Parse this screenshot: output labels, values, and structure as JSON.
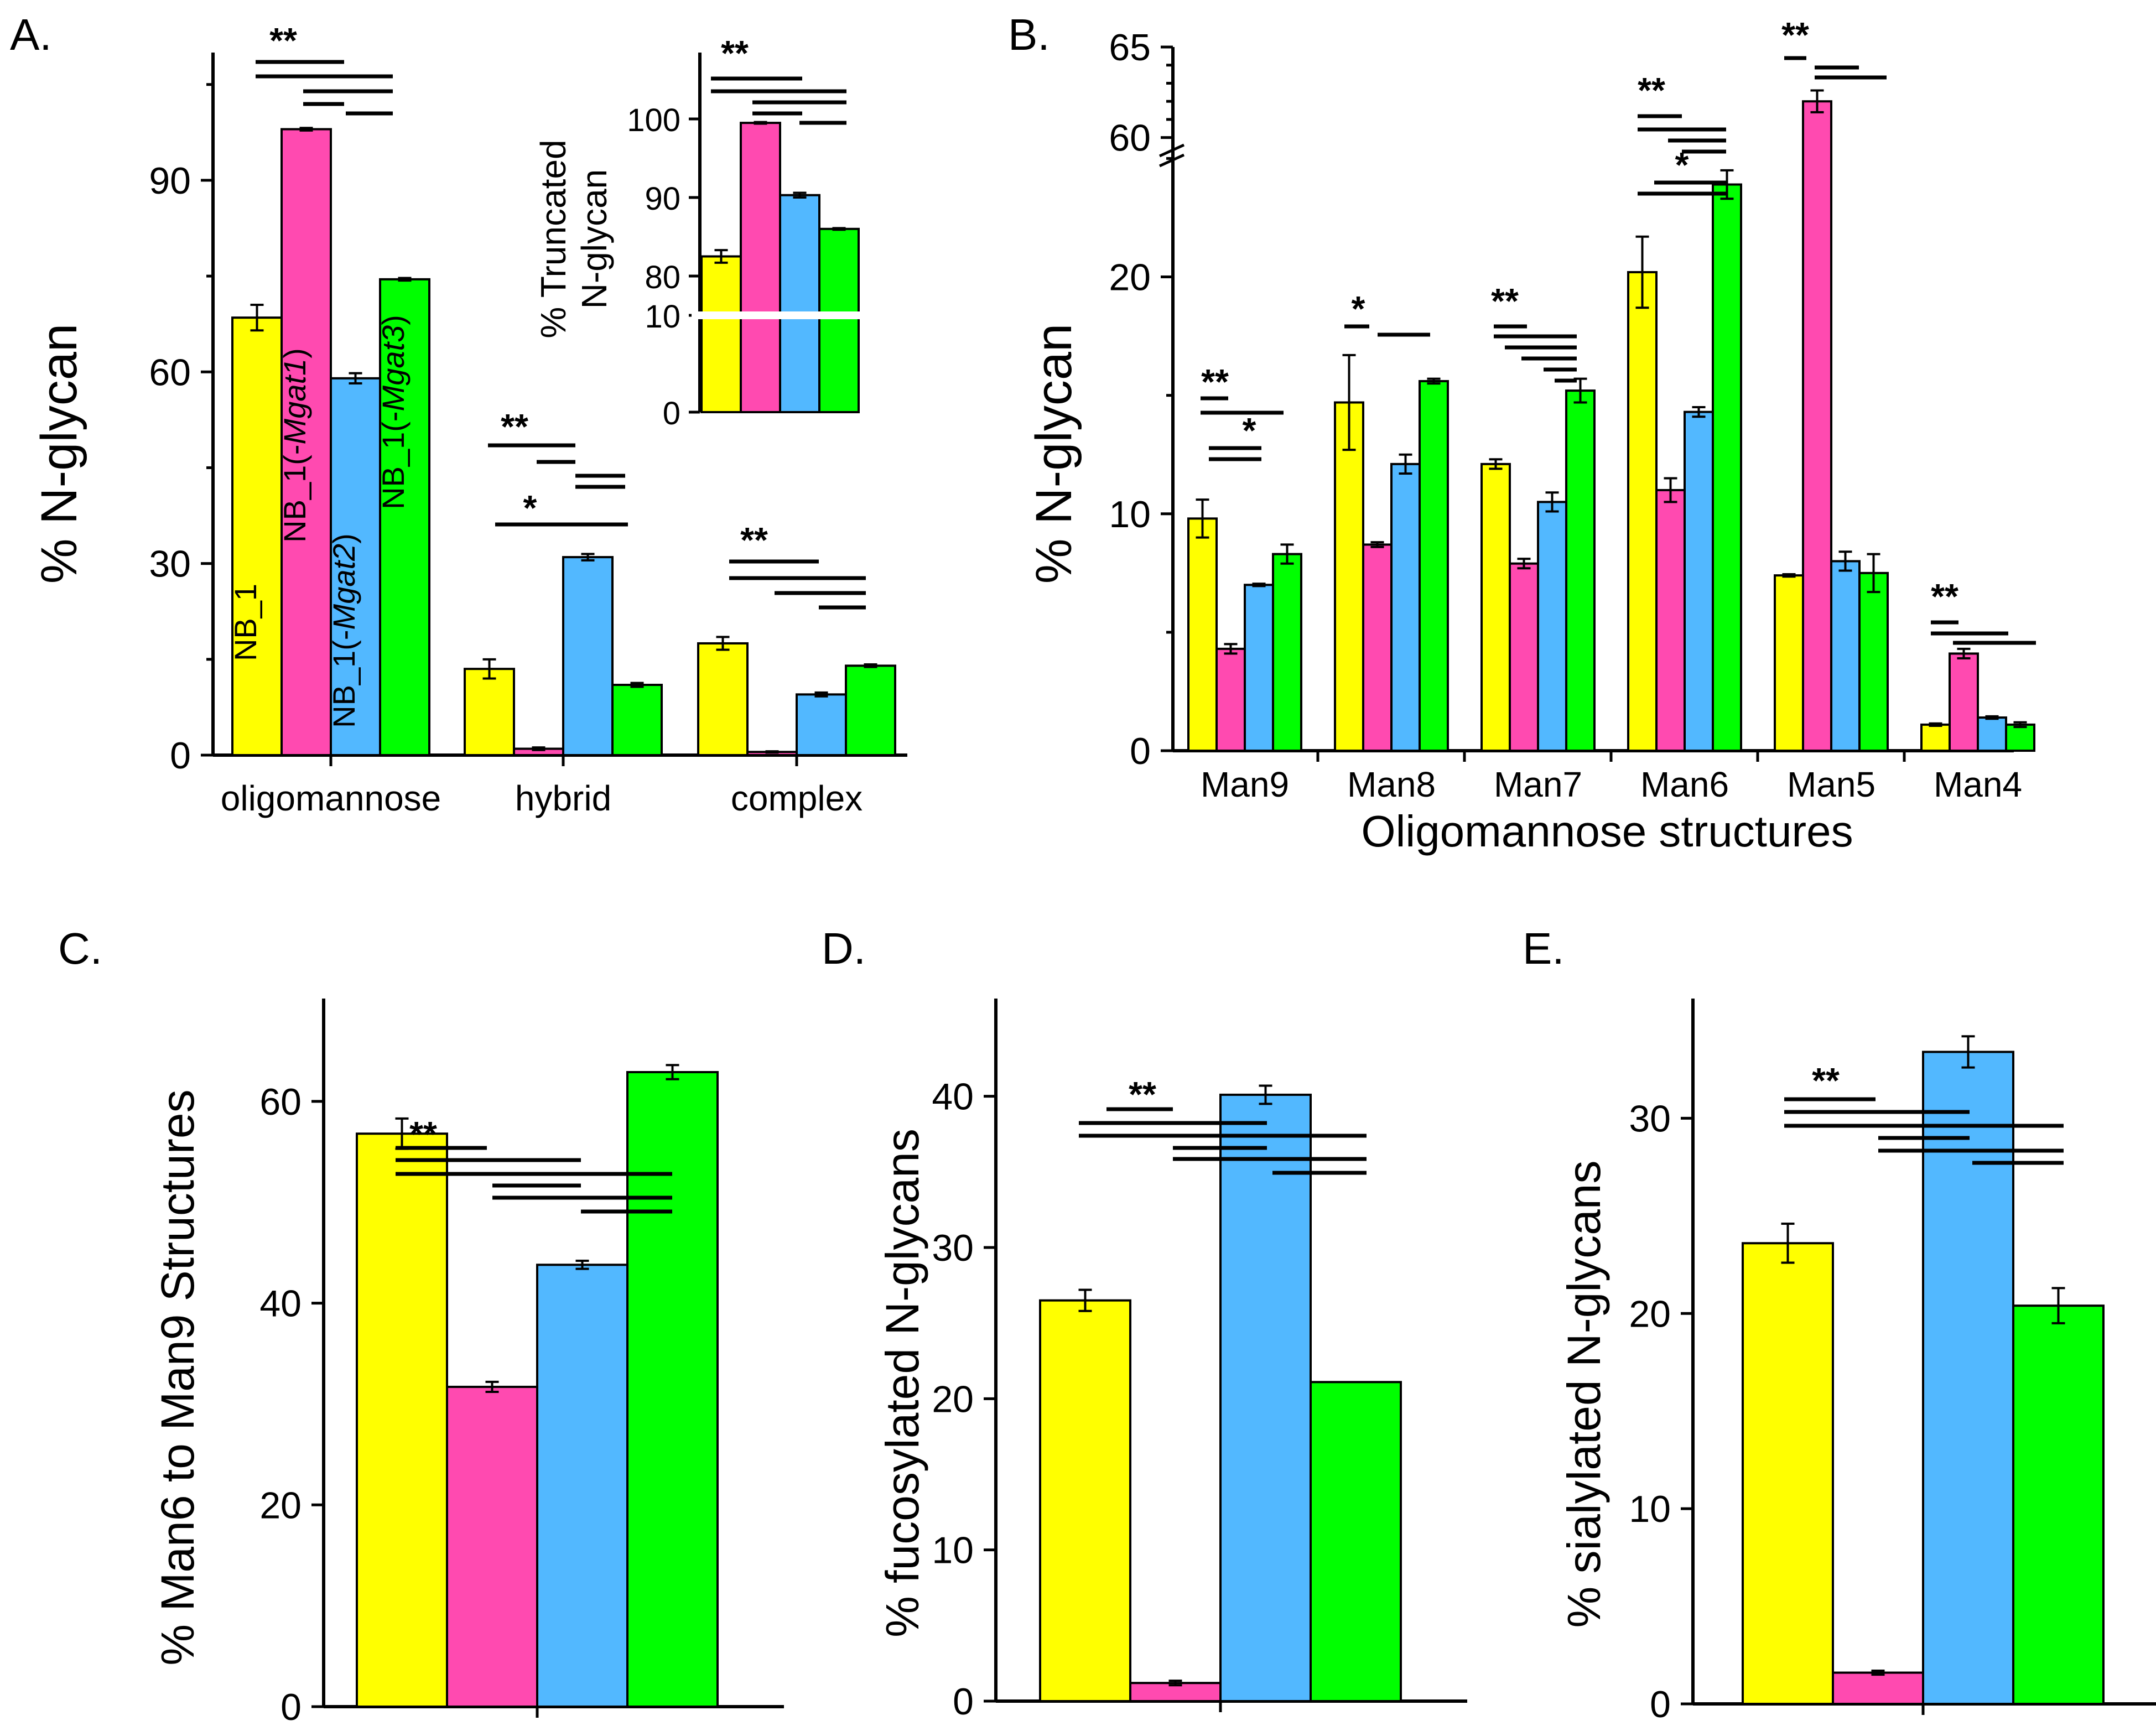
{
  "colors": {
    "NB_1": "#ffff00",
    "NB_1(-Mgat1)": "#ff4ab0",
    "NB_1(-Mgat2)": "#52b8ff",
    "NB_1(-Mgat3)": "#00ff00"
  },
  "series_names": [
    "NB_1",
    "NB_1(-Mgat1)",
    "NB_1(-Mgat2)",
    "NB_1(-Mgat3)"
  ],
  "chart_data": [
    {
      "panel": "A.",
      "type": "bar",
      "ylabel": "% N-glycan",
      "ylim": [
        0,
        110
      ],
      "yticks": [
        0,
        30,
        60,
        90
      ],
      "categories": [
        "oligomannose",
        "hybrid",
        "complex"
      ],
      "series": [
        {
          "name": "NB_1",
          "values": [
            68.5,
            13.5,
            17.5
          ],
          "errors": [
            2.0,
            1.5,
            1.0
          ]
        },
        {
          "name": "NB_1(-Mgat1)",
          "values": [
            98.0,
            1.0,
            0.5
          ],
          "errors": [
            0.2,
            0.2,
            0.1
          ]
        },
        {
          "name": "NB_1(-Mgat2)",
          "values": [
            59.0,
            31.0,
            9.5
          ],
          "errors": [
            0.8,
            0.5,
            0.3
          ]
        },
        {
          "name": "NB_1(-Mgat3)",
          "values": [
            74.5,
            11.0,
            14.0
          ],
          "errors": [
            0.2,
            0.3,
            0.2
          ]
        }
      ],
      "bar_labels": {
        "NB_1": "NB_1",
        "mgat1_prefix": "NB_1(-",
        "mgat1_gene": "Mgat1",
        "mgat2_prefix": "NB_1(-",
        "mgat2_gene": "Mgat2",
        "mgat3_prefix": "NB_1(-",
        "mgat3_gene": "Mgat3",
        "close": ")"
      },
      "significance": [
        "**",
        "**",
        "*",
        "**"
      ]
    },
    {
      "panel": "A. inset",
      "type": "bar",
      "ylabel_line1": "% Truncated",
      "ylabel_line2": "N-glycan",
      "yticks": [
        "0",
        "10",
        "80",
        "90",
        "100"
      ],
      "axis_break": [
        10,
        75
      ],
      "series": [
        {
          "name": "NB_1",
          "values": [
            82.5
          ],
          "errors": [
            0.8
          ]
        },
        {
          "name": "NB_1(-Mgat1)",
          "values": [
            99.5
          ],
          "errors": [
            0.1
          ]
        },
        {
          "name": "NB_1(-Mgat2)",
          "values": [
            90.3
          ],
          "errors": [
            0.3
          ]
        },
        {
          "name": "NB_1(-Mgat3)",
          "values": [
            86.0
          ],
          "errors": [
            0.1
          ]
        }
      ],
      "significance": [
        "**"
      ]
    },
    {
      "panel": "B.",
      "type": "bar",
      "ylabel": "% N-glycan",
      "xlabel": "Oligomannose structures",
      "yticks": [
        0,
        10,
        20,
        60,
        65
      ],
      "axis_break": [
        25.5,
        59.5
      ],
      "categories": [
        "Man9",
        "Man8",
        "Man7",
        "Man6",
        "Man5",
        "Man4"
      ],
      "series": [
        {
          "name": "NB_1",
          "values": [
            9.8,
            14.7,
            12.1,
            20.2,
            7.4,
            1.1
          ],
          "errors": [
            0.8,
            2.0,
            0.2,
            1.5,
            0.05,
            0.05
          ]
        },
        {
          "name": "NB_1(-Mgat1)",
          "values": [
            4.3,
            8.7,
            7.9,
            11.0,
            62.0,
            4.1
          ],
          "errors": [
            0.2,
            0.1,
            0.2,
            0.5,
            0.6,
            0.2
          ]
        },
        {
          "name": "NB_1(-Mgat2)",
          "values": [
            7.0,
            12.1,
            10.5,
            14.3,
            8.0,
            1.4
          ],
          "errors": [
            0.05,
            0.4,
            0.4,
            0.2,
            0.4,
            0.05
          ]
        },
        {
          "name": "NB_1(-Mgat3)",
          "values": [
            8.3,
            15.6,
            15.2,
            23.9,
            7.5,
            1.1
          ],
          "errors": [
            0.4,
            0.1,
            0.5,
            0.6,
            0.8,
            0.1
          ]
        }
      ],
      "significance": [
        "**",
        "*",
        "*",
        "**",
        "**",
        "*",
        "**",
        "**"
      ]
    },
    {
      "panel": "C.",
      "type": "bar",
      "ylabel": "% Man6 to Man9 Structures",
      "ylim": [
        0,
        68
      ],
      "yticks": [
        0,
        20,
        40,
        60
      ],
      "series": [
        {
          "name": "NB_1",
          "values": [
            56.8
          ],
          "errors": [
            1.5
          ]
        },
        {
          "name": "NB_1(-Mgat1)",
          "values": [
            31.7
          ],
          "errors": [
            0.5
          ]
        },
        {
          "name": "NB_1(-Mgat2)",
          "values": [
            43.8
          ],
          "errors": [
            0.4
          ]
        },
        {
          "name": "NB_1(-Mgat3)",
          "values": [
            62.9
          ],
          "errors": [
            0.7
          ]
        }
      ],
      "significance": [
        "**"
      ]
    },
    {
      "panel": "D.",
      "type": "bar",
      "ylabel": "% fucosylated N-glycans",
      "ylim": [
        0,
        45
      ],
      "yticks": [
        0,
        10,
        20,
        30,
        40
      ],
      "series": [
        {
          "name": "NB_1",
          "values": [
            26.5
          ],
          "errors": [
            0.7
          ]
        },
        {
          "name": "NB_1(-Mgat1)",
          "values": [
            1.2
          ],
          "errors": [
            0.15
          ]
        },
        {
          "name": "NB_1(-Mgat2)",
          "values": [
            40.1
          ],
          "errors": [
            0.6
          ]
        },
        {
          "name": "NB_1(-Mgat3)",
          "values": [
            21.1
          ],
          "errors": [
            0
          ]
        }
      ],
      "significance": [
        "**"
      ]
    },
    {
      "panel": "E.",
      "type": "bar",
      "ylabel": "% sialylated N-glycans",
      "ylim": [
        0,
        35
      ],
      "yticks": [
        0,
        10,
        20,
        30
      ],
      "series": [
        {
          "name": "NB_1",
          "values": [
            23.6
          ],
          "errors": [
            1.0
          ]
        },
        {
          "name": "NB_1(-Mgat1)",
          "values": [
            1.6
          ],
          "errors": [
            0.1
          ]
        },
        {
          "name": "NB_1(-Mgat2)",
          "values": [
            33.4
          ],
          "errors": [
            0.8
          ]
        },
        {
          "name": "NB_1(-Mgat3)",
          "values": [
            20.4
          ],
          "errors": [
            0.9
          ]
        }
      ],
      "significance": [
        "**"
      ]
    }
  ]
}
